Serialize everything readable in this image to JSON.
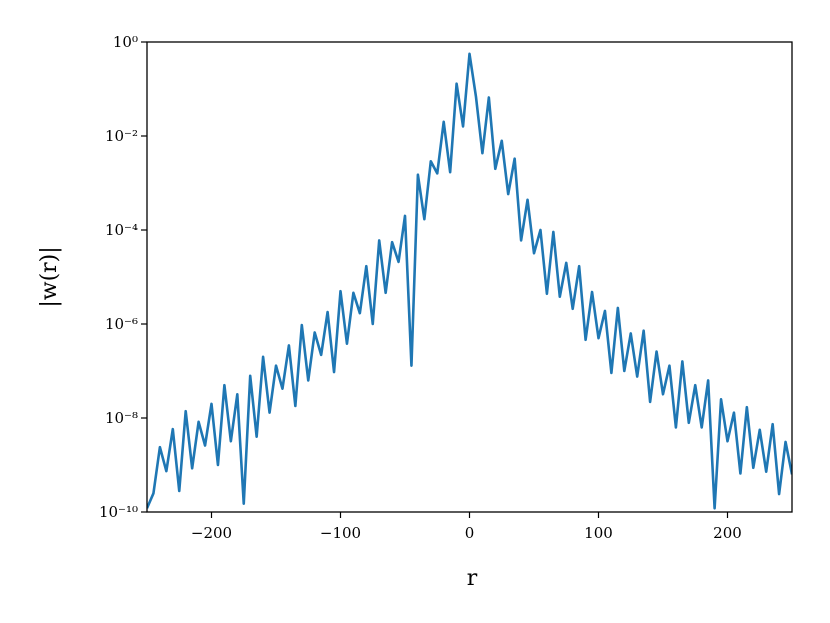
{
  "chart_data": {
    "type": "line",
    "x_label": "r",
    "y_label": "|w(r)|",
    "yscale": "log",
    "color": "#1f77b4",
    "xlim": [
      -250,
      250
    ],
    "ylim": [
      1e-10,
      1
    ],
    "xticks": [
      {
        "value": -200,
        "label": "−200"
      },
      {
        "value": -100,
        "label": "−100"
      },
      0,
      100,
      200
    ],
    "yticks": [
      {
        "value": 1e-10,
        "label": "10⁻¹⁰"
      },
      {
        "value": 1e-08,
        "label": "10⁻⁸"
      },
      {
        "value": 1e-06,
        "label": "10⁻⁶"
      },
      {
        "value": 0.0001,
        "label": "10⁻⁴"
      },
      {
        "value": 0.01,
        "label": "10⁻²"
      },
      {
        "value": 1,
        "label": "10⁰"
      }
    ],
    "x": [
      -250,
      -245,
      -240,
      -235,
      -230,
      -225,
      -220,
      -215,
      -210,
      -205,
      -200,
      -195,
      -190,
      -185,
      -180,
      -175,
      -170,
      -165,
      -160,
      -155,
      -150,
      -145,
      -140,
      -135,
      -130,
      -125,
      -120,
      -115,
      -110,
      -105,
      -100,
      -95,
      -90,
      -85,
      -80,
      -75,
      -70,
      -65,
      -60,
      -55,
      -50,
      -45,
      -40,
      -35,
      -30,
      -25,
      -20,
      -15,
      -10,
      -5,
      0,
      5,
      10,
      15,
      20,
      25,
      30,
      35,
      40,
      45,
      50,
      55,
      60,
      65,
      70,
      75,
      80,
      85,
      90,
      95,
      100,
      105,
      110,
      115,
      120,
      125,
      130,
      135,
      140,
      145,
      150,
      155,
      160,
      165,
      170,
      175,
      180,
      185,
      190,
      195,
      200,
      205,
      210,
      215,
      220,
      225,
      230,
      235,
      240,
      245,
      250
    ],
    "values": [
      1.2e-10,
      2.5e-10,
      2.4e-09,
      7.4e-10,
      5.8e-09,
      2.8e-10,
      1.4e-08,
      8.5e-10,
      8.3e-09,
      2.6e-09,
      2e-08,
      1e-09,
      5e-08,
      3.2e-09,
      3.2e-08,
      1.5e-10,
      7.9e-08,
      4e-09,
      2e-07,
      1.3e-08,
      1.3e-07,
      4.2e-08,
      3.5e-07,
      1.8e-08,
      9.5e-07,
      6.3e-08,
      6.6e-07,
      2.2e-07,
      1.8e-06,
      9.5e-08,
      5e-06,
      3.8e-07,
      4.6e-06,
      1.7e-06,
      1.7e-05,
      1e-06,
      6e-05,
      4.6e-06,
      5.5e-05,
      2.1e-05,
      0.0002,
      1.3e-07,
      0.0015,
      0.00017,
      0.0029,
      0.0016,
      0.02,
      0.0017,
      0.13,
      0.016,
      0.56,
      0.069,
      0.0043,
      0.066,
      0.002,
      0.0079,
      0.00058,
      0.0033,
      6e-05,
      0.00044,
      3.2e-05,
      0.0001,
      4.4e-06,
      9.1e-05,
      3.8e-06,
      2e-05,
      2.1e-06,
      1.7e-05,
      4.6e-07,
      4.8e-06,
      5e-07,
      1.9e-06,
      9.1e-08,
      2.2e-06,
      1e-07,
      6.3e-07,
      7.6e-08,
      7.2e-07,
      2.2e-08,
      2.6e-07,
      3.2e-08,
      1.3e-07,
      6.3e-09,
      1.6e-07,
      7.9e-09,
      5e-08,
      6.3e-09,
      6.3e-08,
      1.2e-10,
      2.5e-08,
      3.2e-09,
      1.3e-08,
      6.6e-10,
      1.7e-08,
      8.7e-10,
      5.6e-09,
      7.2e-10,
      7.4e-09,
      2.4e-10,
      3.1e-09,
      6.3e-10
    ]
  }
}
